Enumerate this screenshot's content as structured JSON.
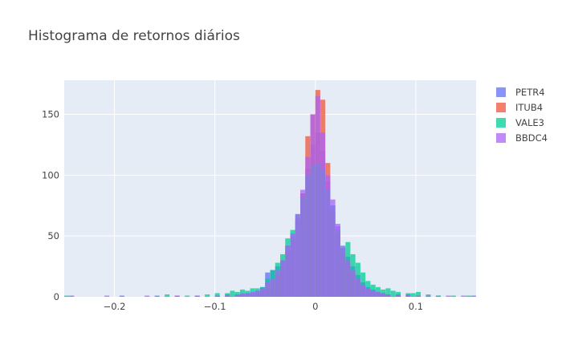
{
  "chart_data": {
    "type": "histogram",
    "title": "Histograma de retornos diários",
    "xlabel": "",
    "ylabel": "",
    "xlim": [
      -0.25,
      0.16
    ],
    "ylim": [
      0,
      178
    ],
    "bin_width": 0.005,
    "x_ticks": [
      {
        "value": -0.2,
        "label": "−0.2"
      },
      {
        "value": -0.1,
        "label": "−0.1"
      },
      {
        "value": 0,
        "label": "0"
      },
      {
        "value": 0.1,
        "label": "0.1"
      }
    ],
    "y_ticks": [
      {
        "value": 0,
        "label": "0"
      },
      {
        "value": 50,
        "label": "50"
      },
      {
        "value": 100,
        "label": "100"
      },
      {
        "value": 150,
        "label": "150"
      }
    ],
    "grid": true,
    "barmode": "overlay",
    "legend_position": "top-right",
    "series": [
      {
        "name": "PETR4",
        "color": "#636efa",
        "bins": [
          [
            -0.245,
            1
          ],
          [
            -0.195,
            1
          ],
          [
            -0.16,
            1
          ],
          [
            -0.14,
            1
          ],
          [
            -0.12,
            1
          ],
          [
            -0.1,
            1
          ],
          [
            -0.09,
            1
          ],
          [
            -0.08,
            2
          ],
          [
            -0.075,
            2
          ],
          [
            -0.07,
            3
          ],
          [
            -0.065,
            3
          ],
          [
            -0.06,
            5
          ],
          [
            -0.055,
            8
          ],
          [
            -0.05,
            20
          ],
          [
            -0.045,
            22
          ],
          [
            -0.04,
            25
          ],
          [
            -0.035,
            30
          ],
          [
            -0.03,
            42
          ],
          [
            -0.025,
            50
          ],
          [
            -0.02,
            65
          ],
          [
            -0.015,
            85
          ],
          [
            -0.01,
            105
          ],
          [
            -0.005,
            125
          ],
          [
            0,
            135
          ],
          [
            0.005,
            120
          ],
          [
            0.01,
            95
          ],
          [
            0.015,
            75
          ],
          [
            0.02,
            58
          ],
          [
            0.025,
            42
          ],
          [
            0.03,
            33
          ],
          [
            0.035,
            25
          ],
          [
            0.04,
            18
          ],
          [
            0.045,
            12
          ],
          [
            0.05,
            8
          ],
          [
            0.055,
            6
          ],
          [
            0.06,
            4
          ],
          [
            0.065,
            3
          ],
          [
            0.07,
            2
          ],
          [
            0.08,
            2
          ],
          [
            0.09,
            2
          ],
          [
            0.1,
            1
          ],
          [
            0.12,
            1
          ],
          [
            0.155,
            1
          ]
        ]
      },
      {
        "name": "ITUB4",
        "color": "#ef553b",
        "bins": [
          [
            -0.06,
            3
          ],
          [
            -0.055,
            5
          ],
          [
            -0.05,
            8
          ],
          [
            -0.045,
            12
          ],
          [
            -0.04,
            18
          ],
          [
            -0.035,
            25
          ],
          [
            -0.03,
            38
          ],
          [
            -0.025,
            48
          ],
          [
            -0.02,
            62
          ],
          [
            -0.015,
            85
          ],
          [
            -0.01,
            132
          ],
          [
            -0.005,
            150
          ],
          [
            0,
            170
          ],
          [
            0.005,
            162
          ],
          [
            0.01,
            110
          ],
          [
            0.015,
            70
          ],
          [
            0.02,
            52
          ],
          [
            0.025,
            35
          ],
          [
            0.03,
            28
          ],
          [
            0.035,
            20
          ],
          [
            0.04,
            14
          ],
          [
            0.045,
            10
          ],
          [
            0.05,
            7
          ],
          [
            0.055,
            5
          ],
          [
            0.06,
            4
          ],
          [
            0.065,
            3
          ],
          [
            0.07,
            2
          ],
          [
            0.08,
            1
          ]
        ]
      },
      {
        "name": "VALE3",
        "color": "#00cc96",
        "bins": [
          [
            -0.25,
            1
          ],
          [
            -0.15,
            2
          ],
          [
            -0.13,
            1
          ],
          [
            -0.11,
            2
          ],
          [
            -0.1,
            3
          ],
          [
            -0.09,
            3
          ],
          [
            -0.085,
            5
          ],
          [
            -0.08,
            4
          ],
          [
            -0.075,
            6
          ],
          [
            -0.07,
            5
          ],
          [
            -0.065,
            7
          ],
          [
            -0.06,
            7
          ],
          [
            -0.055,
            8
          ],
          [
            -0.05,
            15
          ],
          [
            -0.045,
            22
          ],
          [
            -0.04,
            28
          ],
          [
            -0.035,
            35
          ],
          [
            -0.03,
            48
          ],
          [
            -0.025,
            55
          ],
          [
            -0.02,
            68
          ],
          [
            -0.015,
            82
          ],
          [
            -0.01,
            100
          ],
          [
            -0.005,
            108
          ],
          [
            0,
            110
          ],
          [
            0.005,
            105
          ],
          [
            0.01,
            88
          ],
          [
            0.015,
            75
          ],
          [
            0.02,
            55
          ],
          [
            0.025,
            40
          ],
          [
            0.03,
            45
          ],
          [
            0.035,
            35
          ],
          [
            0.04,
            28
          ],
          [
            0.045,
            20
          ],
          [
            0.05,
            13
          ],
          [
            0.055,
            10
          ],
          [
            0.06,
            8
          ],
          [
            0.065,
            6
          ],
          [
            0.07,
            7
          ],
          [
            0.075,
            5
          ],
          [
            0.08,
            4
          ],
          [
            0.09,
            3
          ],
          [
            0.095,
            3
          ],
          [
            0.1,
            4
          ],
          [
            0.11,
            2
          ],
          [
            0.12,
            1
          ],
          [
            0.135,
            1
          ],
          [
            0.15,
            1
          ]
        ]
      },
      {
        "name": "BBDC4",
        "color": "#ab63fa",
        "bins": [
          [
            -0.21,
            1
          ],
          [
            -0.17,
            1
          ],
          [
            -0.14,
            1
          ],
          [
            -0.12,
            1
          ],
          [
            -0.1,
            1
          ],
          [
            -0.09,
            2
          ],
          [
            -0.08,
            2
          ],
          [
            -0.075,
            3
          ],
          [
            -0.07,
            3
          ],
          [
            -0.065,
            4
          ],
          [
            -0.06,
            5
          ],
          [
            -0.055,
            7
          ],
          [
            -0.05,
            12
          ],
          [
            -0.045,
            15
          ],
          [
            -0.04,
            22
          ],
          [
            -0.035,
            30
          ],
          [
            -0.03,
            42
          ],
          [
            -0.025,
            52
          ],
          [
            -0.02,
            68
          ],
          [
            -0.015,
            88
          ],
          [
            -0.01,
            115
          ],
          [
            -0.005,
            150
          ],
          [
            0,
            165
          ],
          [
            0.005,
            135
          ],
          [
            0.01,
            100
          ],
          [
            0.015,
            80
          ],
          [
            0.02,
            60
          ],
          [
            0.025,
            40
          ],
          [
            0.03,
            30
          ],
          [
            0.035,
            22
          ],
          [
            0.04,
            15
          ],
          [
            0.045,
            10
          ],
          [
            0.05,
            7
          ],
          [
            0.055,
            5
          ],
          [
            0.06,
            4
          ],
          [
            0.065,
            3
          ],
          [
            0.07,
            2
          ],
          [
            0.08,
            2
          ],
          [
            0.09,
            2
          ],
          [
            0.1,
            1
          ],
          [
            0.11,
            1
          ],
          [
            0.13,
            1
          ],
          [
            0.145,
            1
          ]
        ]
      }
    ]
  }
}
